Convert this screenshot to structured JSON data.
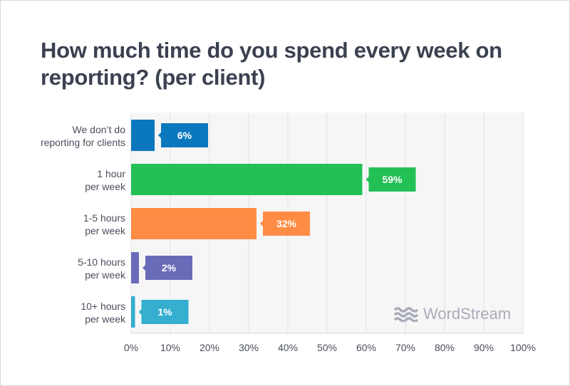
{
  "chart_data": {
    "type": "bar",
    "orientation": "horizontal",
    "title": "How much time do you spend every week on reporting? (per client)",
    "categories": [
      [
        "We don’t do",
        "reporting for clients"
      ],
      [
        "1 hour",
        "per week"
      ],
      [
        "1-5 hours",
        "per week"
      ],
      [
        "5-10 hours",
        "per week"
      ],
      [
        "10+ hours",
        "per week"
      ]
    ],
    "values": [
      6,
      59,
      32,
      2,
      1
    ],
    "data_labels": [
      "6%",
      "59%",
      "32%",
      "2%",
      "1%"
    ],
    "colors": [
      "#0b78bd",
      "#22c055",
      "#ff8c44",
      "#6a6bb8",
      "#35aed0"
    ],
    "xlim": [
      0,
      100
    ],
    "xticks": [
      "0%",
      "10%",
      "20%",
      "30%",
      "40%",
      "50%",
      "60%",
      "70%",
      "80%",
      "90%",
      "100%"
    ],
    "grid": true,
    "xlabel": "",
    "ylabel": ""
  },
  "logo": {
    "text": "WordStream"
  }
}
